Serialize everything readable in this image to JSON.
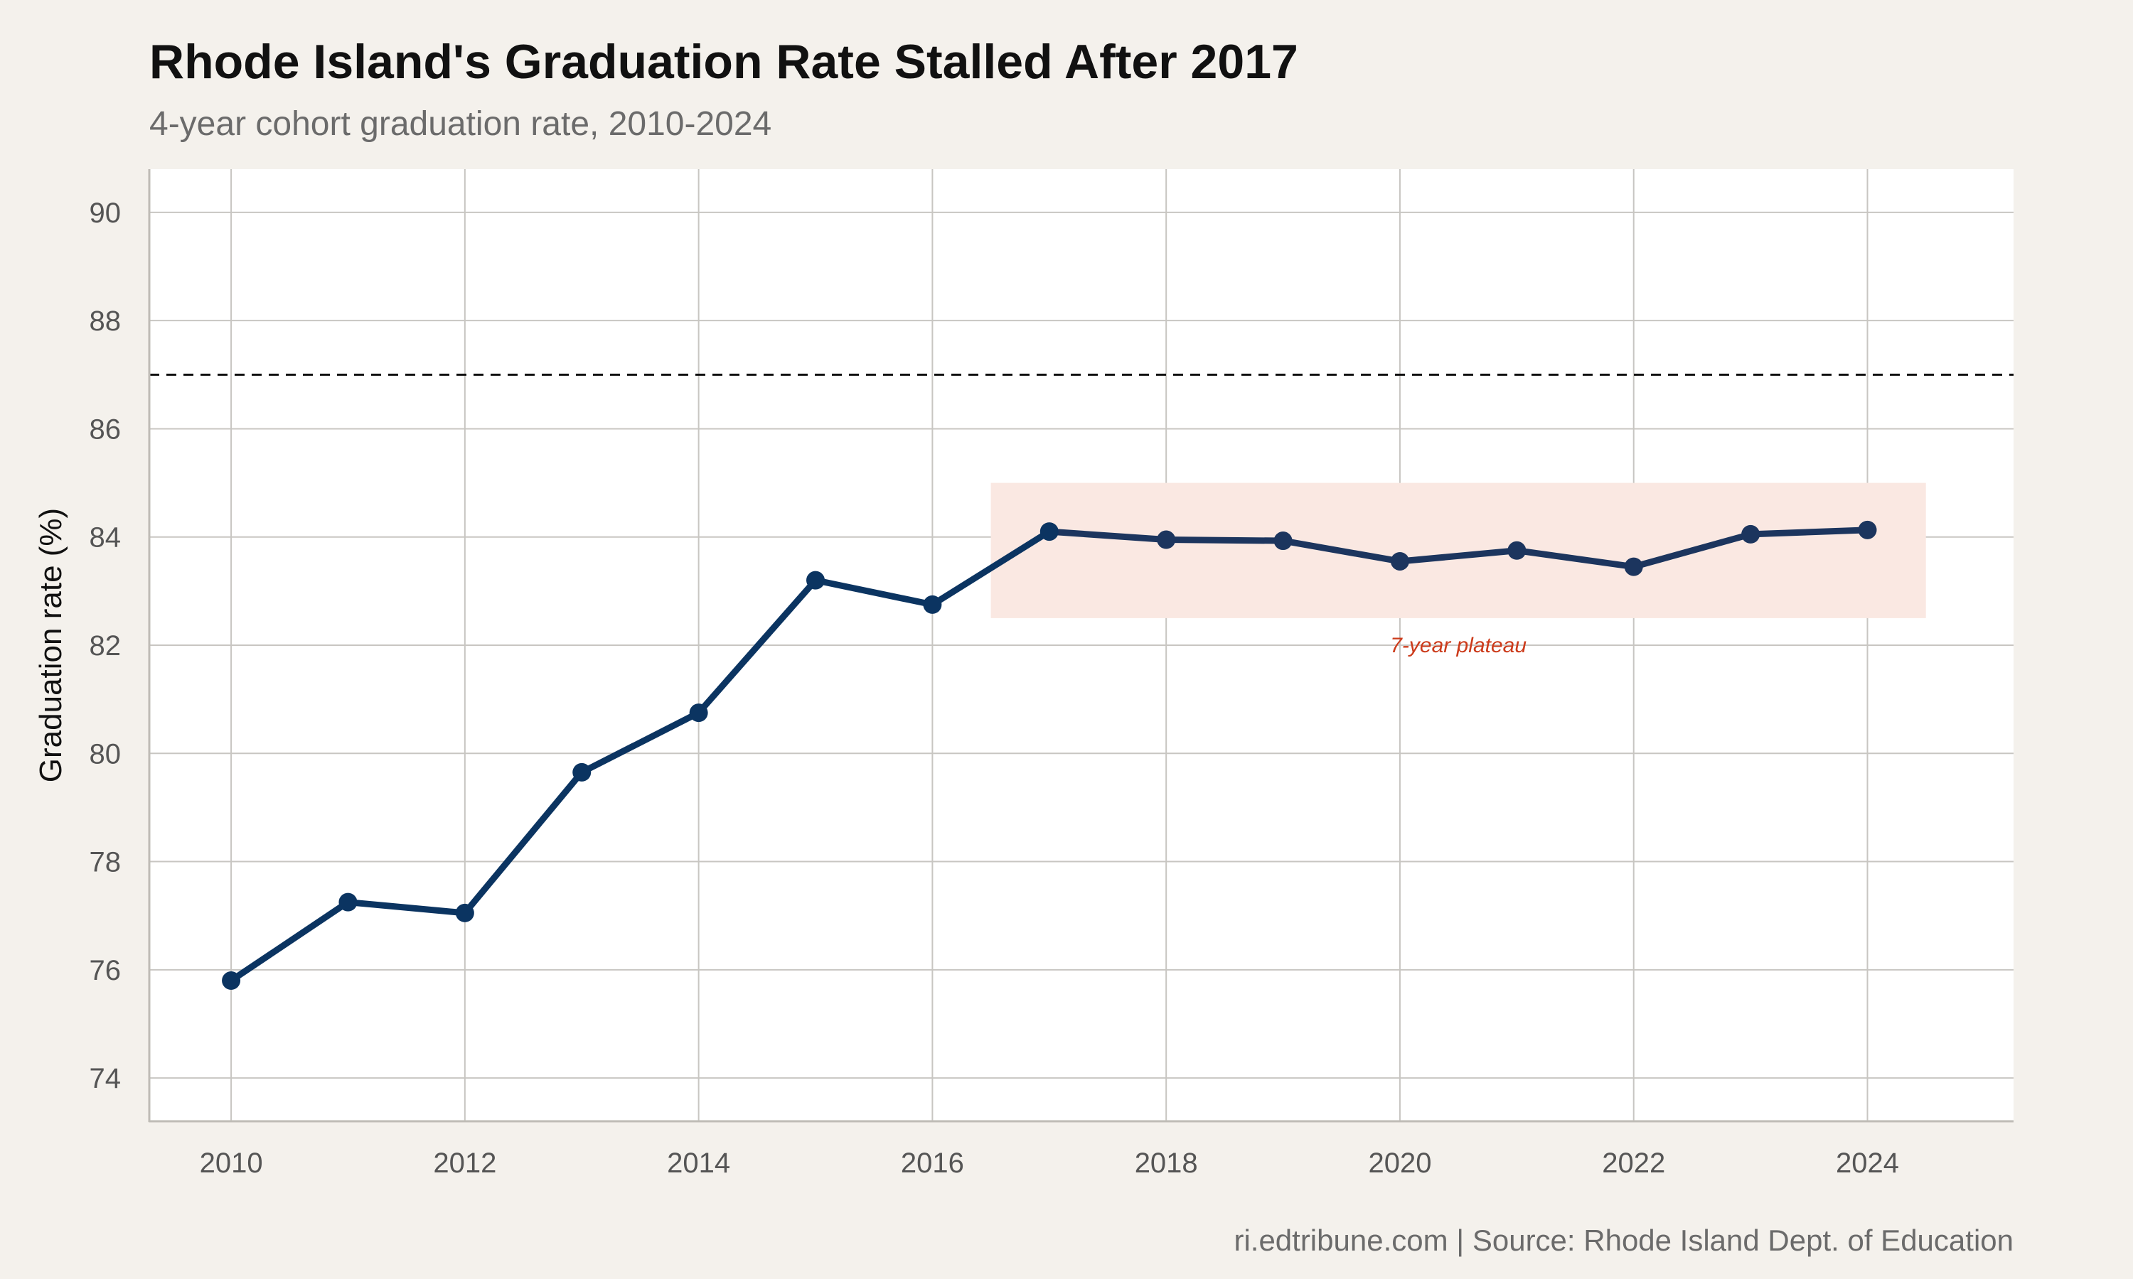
{
  "chart_data": {
    "type": "line",
    "title": "Rhode Island's Graduation Rate Stalled After 2017",
    "subtitle": "4-year cohort graduation rate, 2010-2024",
    "xlabel": "",
    "ylabel": "Graduation rate (%)",
    "caption": "ri.edtribune.com | Source: Rhode Island Dept. of Education",
    "xlim": [
      2009.3,
      2025.25
    ],
    "ylim": [
      73.2,
      90.8
    ],
    "xticks": [
      2010,
      2012,
      2014,
      2016,
      2018,
      2020,
      2022,
      2024
    ],
    "yticks": [
      74,
      76,
      78,
      80,
      82,
      84,
      86,
      88,
      90
    ],
    "grid": true,
    "series": [
      {
        "x": [
          2010,
          2011,
          2012,
          2013,
          2014,
          2015,
          2016,
          2017,
          2018,
          2019,
          2020,
          2021,
          2022,
          2023,
          2024
        ],
        "y": [
          75.8,
          77.25,
          77.05,
          79.65,
          80.75,
          83.2,
          82.75,
          84.1,
          83.95,
          83.93,
          83.55,
          83.75,
          83.45,
          84.05,
          84.13
        ],
        "color": "#0b3461",
        "color_after_2017": "#1c355e",
        "marker": "circle"
      }
    ],
    "reference_line": {
      "y": 87,
      "style": "dashed",
      "color": "#111111"
    },
    "shaded_region": {
      "x": [
        2016.5,
        2024.5
      ],
      "y": [
        82.5,
        85
      ],
      "color": "#fae8e2",
      "label": "7-year plateau",
      "label_color": "#cc3b1b",
      "label_at": {
        "x": 2020.5,
        "y": 82
      }
    },
    "colors": {
      "background": "#f4f1ec",
      "panel": "#ffffff",
      "grid": "#c8c6c2"
    }
  }
}
